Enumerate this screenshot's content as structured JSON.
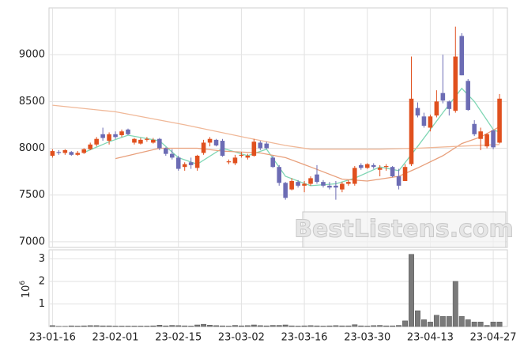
{
  "chart_data": {
    "type": "candlestick",
    "categories": [
      "23-01-16",
      null,
      null,
      null,
      null,
      null,
      null,
      null,
      null,
      null,
      "23-02-01",
      null,
      null,
      null,
      null,
      null,
      null,
      null,
      null,
      null,
      "23-02-15",
      null,
      null,
      null,
      null,
      null,
      null,
      null,
      null,
      null,
      "23-03-02",
      null,
      null,
      null,
      null,
      null,
      null,
      null,
      null,
      null,
      "23-03-16",
      null,
      null,
      null,
      null,
      null,
      null,
      null,
      null,
      null,
      "23-03-30",
      null,
      null,
      null,
      null,
      null,
      null,
      null,
      null,
      null,
      "23-04-13",
      null,
      null,
      null,
      null,
      null,
      null,
      null,
      null,
      null,
      "23-04-27",
      null
    ],
    "open": [
      7920,
      7960,
      7950,
      7960,
      7930,
      7950,
      7990,
      8040,
      8150,
      8080,
      8150,
      8140,
      8200,
      8060,
      8050,
      8090,
      8060,
      8100,
      8000,
      7940,
      7900,
      7800,
      7850,
      7790,
      7950,
      8060,
      8090,
      8080,
      7850,
      7840,
      7920,
      7900,
      7920,
      8060,
      8050,
      7900,
      7800,
      7630,
      7560,
      7640,
      7600,
      7620,
      7720,
      7640,
      7600,
      7600,
      7560,
      7620,
      7620,
      7820,
      7790,
      7820,
      7770,
      7800,
      7800,
      7700,
      7650,
      7830,
      8430,
      8340,
      8220,
      8350,
      8590,
      8500,
      8400,
      9200,
      8720,
      8260,
      8100,
      8020,
      8190,
      8060
    ],
    "high": [
      7990,
      7980,
      7990,
      7970,
      7970,
      8000,
      8060,
      8120,
      8220,
      8170,
      8180,
      8200,
      8210,
      8110,
      8110,
      8120,
      8110,
      8110,
      8010,
      7990,
      7920,
      7850,
      7900,
      7930,
      8090,
      8120,
      8100,
      8100,
      7880,
      7930,
      7960,
      7940,
      8100,
      8080,
      8070,
      7920,
      7820,
      7640,
      7680,
      7660,
      7650,
      7700,
      7820,
      7660,
      7640,
      7650,
      7640,
      7660,
      7810,
      7840,
      7840,
      7840,
      7820,
      7830,
      7810,
      7780,
      7830,
      8980,
      8490,
      8380,
      8360,
      8620,
      9000,
      8510,
      9300,
      9230,
      8740,
      8300,
      8220,
      8160,
      8200,
      8580
    ],
    "low": [
      7900,
      7930,
      7930,
      7920,
      7920,
      7940,
      7980,
      8020,
      8080,
      8040,
      8100,
      8120,
      8140,
      8040,
      8040,
      8070,
      8050,
      7980,
      7920,
      7880,
      7760,
      7760,
      7780,
      7760,
      7930,
      8020,
      8020,
      7910,
      7830,
      7820,
      7900,
      7880,
      7910,
      7980,
      7990,
      7790,
      7600,
      7450,
      7550,
      7580,
      7530,
      7600,
      7620,
      7580,
      7560,
      7450,
      7530,
      7600,
      7600,
      7770,
      7780,
      7780,
      7700,
      7760,
      7690,
      7560,
      7650,
      7810,
      8330,
      8220,
      8180,
      8330,
      8480,
      8350,
      8380,
      8780,
      8400,
      8130,
      7980,
      8000,
      7990,
      8050
    ],
    "close": [
      7970,
      7950,
      7980,
      7930,
      7950,
      7990,
      8040,
      8100,
      8110,
      8150,
      8120,
      8180,
      8150,
      8100,
      8090,
      8100,
      8090,
      8000,
      7940,
      7900,
      7780,
      7830,
      7820,
      7920,
      8060,
      8100,
      8030,
      7920,
      7860,
      7900,
      7930,
      7920,
      8070,
      8000,
      8000,
      7800,
      7630,
      7470,
      7650,
      7600,
      7620,
      7680,
      7640,
      7600,
      7580,
      7580,
      7620,
      7640,
      7790,
      7790,
      7830,
      7800,
      7790,
      7810,
      7700,
      7600,
      7800,
      8530,
      8350,
      8240,
      8340,
      8500,
      8510,
      8420,
      8980,
      8780,
      8410,
      8150,
      8180,
      8150,
      8010,
      8530
    ],
    "up_color": "#e0501e",
    "down_color": "#6c6cb4",
    "ylim": [
      6940,
      9500
    ],
    "yticks": [
      7000,
      7500,
      8000,
      8500,
      9000
    ],
    "grid": true,
    "moving_averages": [
      {
        "color": "#7fd6b4",
        "x": [
          5,
          9,
          12,
          17,
          20,
          23,
          27,
          31,
          34,
          37,
          41,
          45,
          48,
          52,
          55,
          58,
          62,
          65,
          67,
          70,
          71
        ],
        "values": [
          7955,
          8070,
          8140,
          8080,
          7900,
          7830,
          8000,
          7920,
          7990,
          7700,
          7600,
          7620,
          7680,
          7800,
          7760,
          8020,
          8380,
          8640,
          8500,
          8200,
          8170
        ]
      },
      {
        "color": "#e8a07c",
        "x": [
          10,
          17,
          23,
          27,
          33,
          37,
          41,
          46,
          50,
          55,
          58,
          62,
          65,
          68,
          71
        ],
        "values": [
          7890,
          8000,
          8000,
          7970,
          7950,
          7900,
          7800,
          7670,
          7650,
          7700,
          7790,
          7920,
          8050,
          8120,
          8230
        ]
      },
      {
        "color": "#f0b898",
        "x": [
          0,
          10,
          21,
          31,
          37,
          41,
          52,
          58,
          64,
          71
        ],
        "values": [
          8460,
          8390,
          8250,
          8110,
          8030,
          7990,
          7990,
          8000,
          8020,
          8040
        ]
      }
    ],
    "volume": {
      "type": "bar",
      "color": "#7a7a7a",
      "values": [
        0.04,
        0.01,
        0.01,
        0.03,
        0.02,
        0.03,
        0.04,
        0.04,
        0.03,
        0.03,
        0.02,
        0.02,
        0.02,
        0.02,
        0.02,
        0.02,
        0.03,
        0.06,
        0.03,
        0.05,
        0.04,
        0.03,
        0.02,
        0.07,
        0.1,
        0.06,
        0.04,
        0.03,
        0.02,
        0.05,
        0.03,
        0.04,
        0.07,
        0.04,
        0.03,
        0.05,
        0.05,
        0.07,
        0.03,
        0.02,
        0.03,
        0.04,
        0.03,
        0.02,
        0.03,
        0.04,
        0.03,
        0.03,
        0.08,
        0.03,
        0.02,
        0.04,
        0.05,
        0.03,
        0.03,
        0.05,
        0.25,
        3.2,
        0.7,
        0.3,
        0.2,
        0.5,
        0.45,
        0.45,
        2.0,
        0.45,
        0.3,
        0.2,
        0.2,
        0.05,
        0.2,
        0.2
      ],
      "ylim": [
        0,
        3.4
      ],
      "yticks": [
        1,
        2,
        3
      ],
      "ylabel_base": "10",
      "ylabel_exponent": "6"
    }
  },
  "watermark": "BestListens.com"
}
